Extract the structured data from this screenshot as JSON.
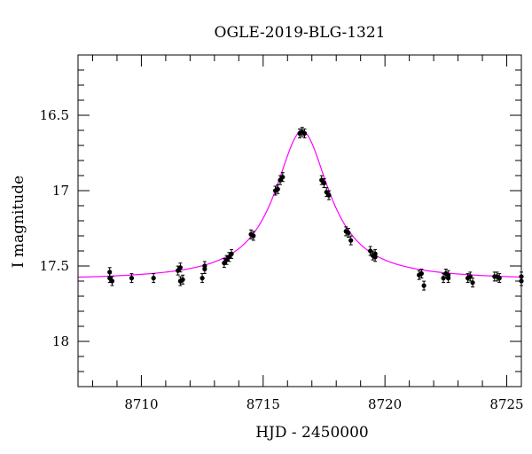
{
  "chart_data": {
    "type": "scatter",
    "title": "OGLE-2019-BLG-1321",
    "xlabel": "HJD - 2450000",
    "ylabel": "I magnitude",
    "xlim": [
      8707.4,
      8725.6
    ],
    "ylim": [
      18.3,
      16.1
    ],
    "y_inverted": true,
    "x_ticks": [
      8710,
      8715,
      8720,
      8725
    ],
    "y_ticks": [
      16.5,
      17,
      17.5,
      18
    ],
    "y_tick_labels": [
      "16.5",
      "17",
      "17.5",
      "18"
    ],
    "grid": false,
    "colors": {
      "points": "#000000",
      "model": "#ff00ff"
    },
    "series": [
      {
        "kind": "points",
        "points": [
          [
            8708.7,
            17.54
          ],
          [
            8708.7,
            17.58
          ],
          [
            8708.8,
            17.6
          ],
          [
            8709.6,
            17.58
          ],
          [
            8710.5,
            17.58
          ],
          [
            8711.5,
            17.53
          ],
          [
            8711.6,
            17.51
          ],
          [
            8711.6,
            17.6
          ],
          [
            8711.7,
            17.59
          ],
          [
            8712.5,
            17.58
          ],
          [
            8712.6,
            17.5
          ],
          [
            8712.6,
            17.52
          ],
          [
            8713.4,
            17.48
          ],
          [
            8713.5,
            17.46
          ],
          [
            8713.6,
            17.44
          ],
          [
            8713.7,
            17.42
          ],
          [
            8714.5,
            17.29
          ],
          [
            8714.6,
            17.3
          ],
          [
            8715.5,
            17.0
          ],
          [
            8715.6,
            16.99
          ],
          [
            8715.7,
            16.93
          ],
          [
            8715.8,
            16.91
          ],
          [
            8716.5,
            16.62
          ],
          [
            8716.6,
            16.61
          ],
          [
            8716.7,
            16.62
          ],
          [
            8717.4,
            16.93
          ],
          [
            8717.5,
            16.95
          ],
          [
            8717.6,
            17.01
          ],
          [
            8717.7,
            17.03
          ],
          [
            8718.4,
            17.27
          ],
          [
            8718.5,
            17.28
          ],
          [
            8718.6,
            17.33
          ],
          [
            8719.4,
            17.4
          ],
          [
            8719.5,
            17.43
          ],
          [
            8719.6,
            17.44
          ],
          [
            8719.6,
            17.42
          ],
          [
            8721.4,
            17.56
          ],
          [
            8721.5,
            17.55
          ],
          [
            8721.6,
            17.63
          ],
          [
            8722.4,
            17.58
          ],
          [
            8722.5,
            17.55
          ],
          [
            8722.6,
            17.56
          ],
          [
            8722.6,
            17.58
          ],
          [
            8723.4,
            17.58
          ],
          [
            8723.5,
            17.57
          ],
          [
            8723.6,
            17.61
          ],
          [
            8724.5,
            17.57
          ],
          [
            8724.6,
            17.57
          ],
          [
            8724.7,
            17.58
          ],
          [
            8725.6,
            17.57
          ],
          [
            8725.6,
            17.6
          ]
        ]
      },
      {
        "kind": "model",
        "t0": 8716.6,
        "baseline": 17.595,
        "peak": 16.605,
        "width": 1.35
      }
    ]
  }
}
